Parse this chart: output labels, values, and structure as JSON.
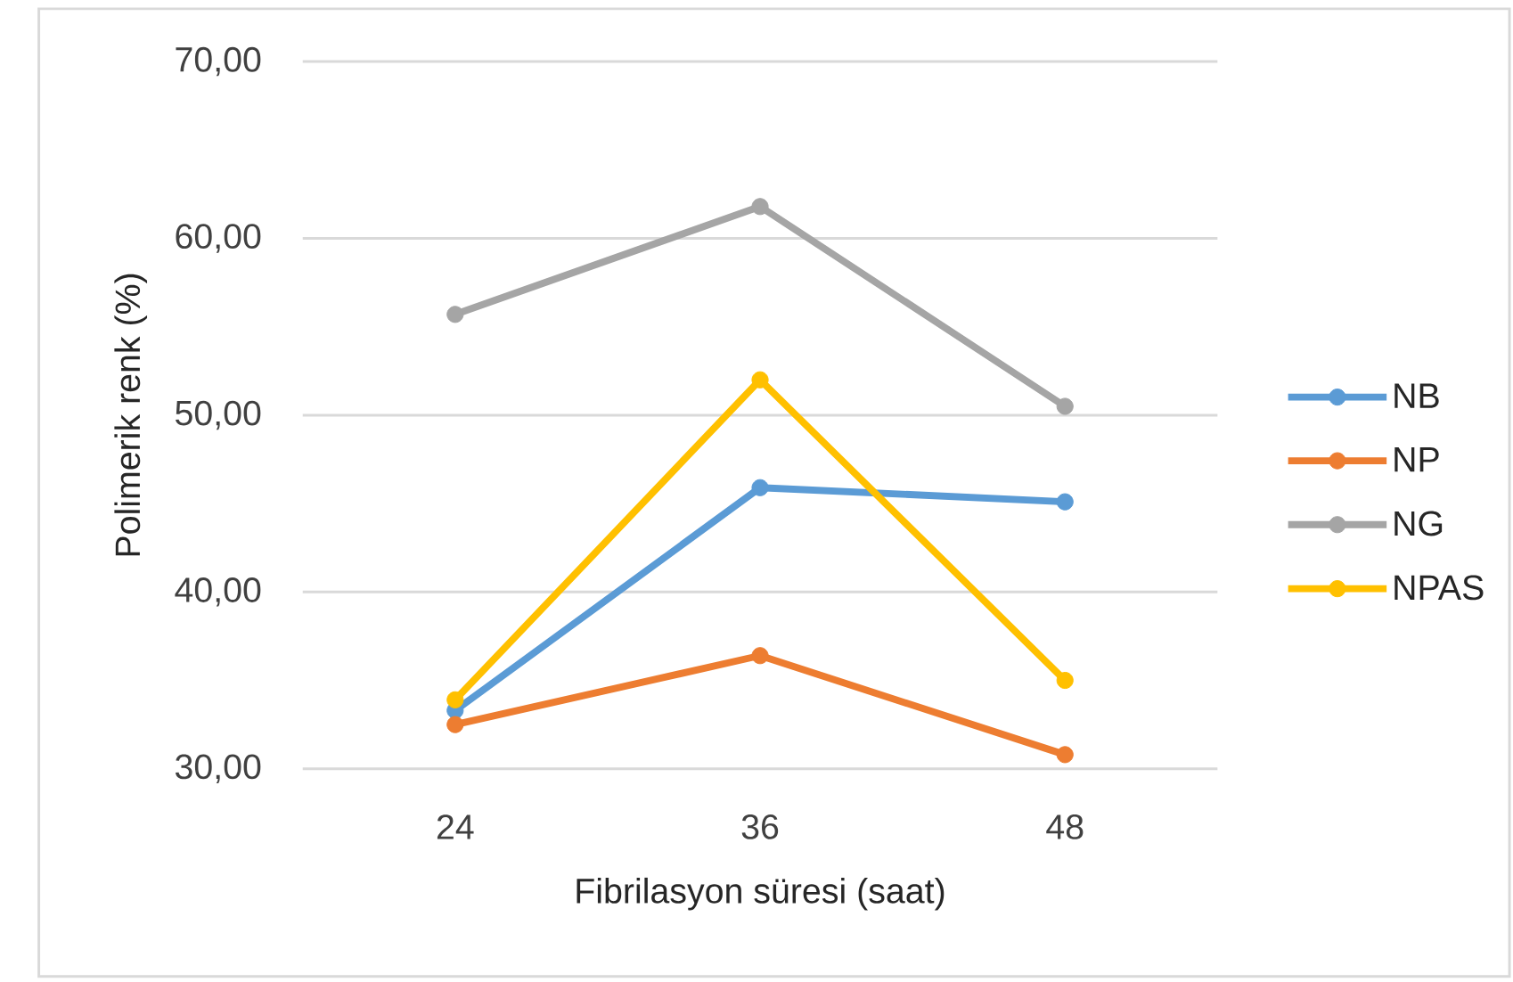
{
  "chart_data": {
    "type": "line",
    "xlabel": "Fibrilasyon süresi (saat)",
    "ylabel": "Polimerik renk (%)",
    "categories": [
      "24",
      "36",
      "48"
    ],
    "series": [
      {
        "name": "NB",
        "color": "#5b9bd5",
        "values": [
          33.3,
          45.9,
          45.1
        ]
      },
      {
        "name": "NP",
        "color": "#ed7d31",
        "values": [
          32.5,
          36.4,
          30.8
        ]
      },
      {
        "name": "NG",
        "color": "#a5a5a5",
        "values": [
          55.7,
          61.8,
          50.5
        ]
      },
      {
        "name": "NPAS",
        "color": "#ffc000",
        "values": [
          33.9,
          52.0,
          35.0
        ]
      }
    ],
    "ylim": [
      30,
      70
    ],
    "yticks": [
      {
        "value": 30,
        "label": "30,00"
      },
      {
        "value": 40,
        "label": "40,00"
      },
      {
        "value": 50,
        "label": "50,00"
      },
      {
        "value": 60,
        "label": "60,00"
      },
      {
        "value": 70,
        "label": "70,00"
      }
    ],
    "grid": "y",
    "legend": "right",
    "marker": "circle",
    "line_style": "solid"
  }
}
